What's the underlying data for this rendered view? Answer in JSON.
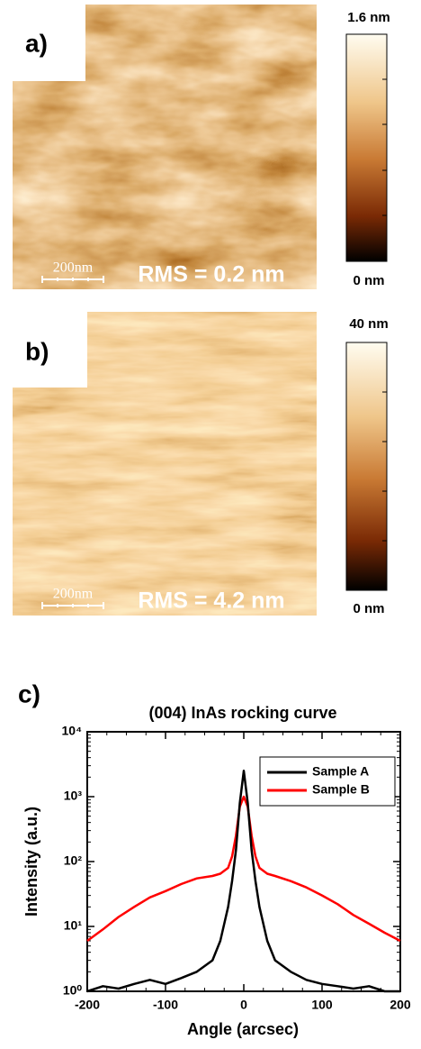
{
  "panel_a": {
    "label": "a)",
    "scale_bar": "200nm",
    "rms": "RMS = 0.2 nm",
    "colorbar_max": "1.6 nm",
    "colorbar_min": "0 nm"
  },
  "panel_b": {
    "label": "b)",
    "scale_bar": "200nm",
    "rms": "RMS = 4.2 nm",
    "colorbar_max": "40 nm",
    "colorbar_min": "0 nm"
  },
  "panel_c": {
    "label": "c)"
  },
  "chart_data": {
    "type": "line",
    "title": "(004) InAs rocking curve",
    "xlabel": "Angle (arcsec)",
    "ylabel": "Intensity (a.u.)",
    "x": [
      -200,
      -180,
      -160,
      -140,
      -120,
      -100,
      -80,
      -60,
      -40,
      -30,
      -20,
      -15,
      -10,
      -5,
      0,
      5,
      10,
      15,
      20,
      30,
      40,
      60,
      80,
      100,
      120,
      140,
      160,
      180,
      200
    ],
    "series": [
      {
        "name": "Sample A",
        "color": "#000000",
        "values": [
          1,
          1.2,
          1.1,
          1.3,
          1.5,
          1.3,
          1.6,
          2,
          3,
          6,
          20,
          50,
          150,
          800,
          2500,
          800,
          150,
          50,
          20,
          6,
          3,
          2,
          1.5,
          1.3,
          1.2,
          1.1,
          1.2,
          1,
          1
        ]
      },
      {
        "name": "Sample B",
        "color": "#ff0000",
        "values": [
          6,
          9,
          14,
          20,
          28,
          35,
          45,
          55,
          60,
          65,
          80,
          120,
          250,
          700,
          1000,
          700,
          250,
          120,
          80,
          65,
          60,
          50,
          40,
          30,
          22,
          15,
          11,
          8,
          6
        ]
      }
    ],
    "xlim": [
      -200,
      200
    ],
    "ylim": [
      1,
      10000
    ],
    "yscale": "log",
    "xticks": [
      -200,
      -100,
      0,
      100,
      200
    ],
    "yticks": [
      {
        "value": 1,
        "label": "10⁰"
      },
      {
        "value": 10,
        "label": "10¹"
      },
      {
        "value": 100,
        "label": "10²"
      },
      {
        "value": 1000,
        "label": "10³"
      },
      {
        "value": 10000,
        "label": "10⁴"
      }
    ],
    "legend": "upper right"
  }
}
